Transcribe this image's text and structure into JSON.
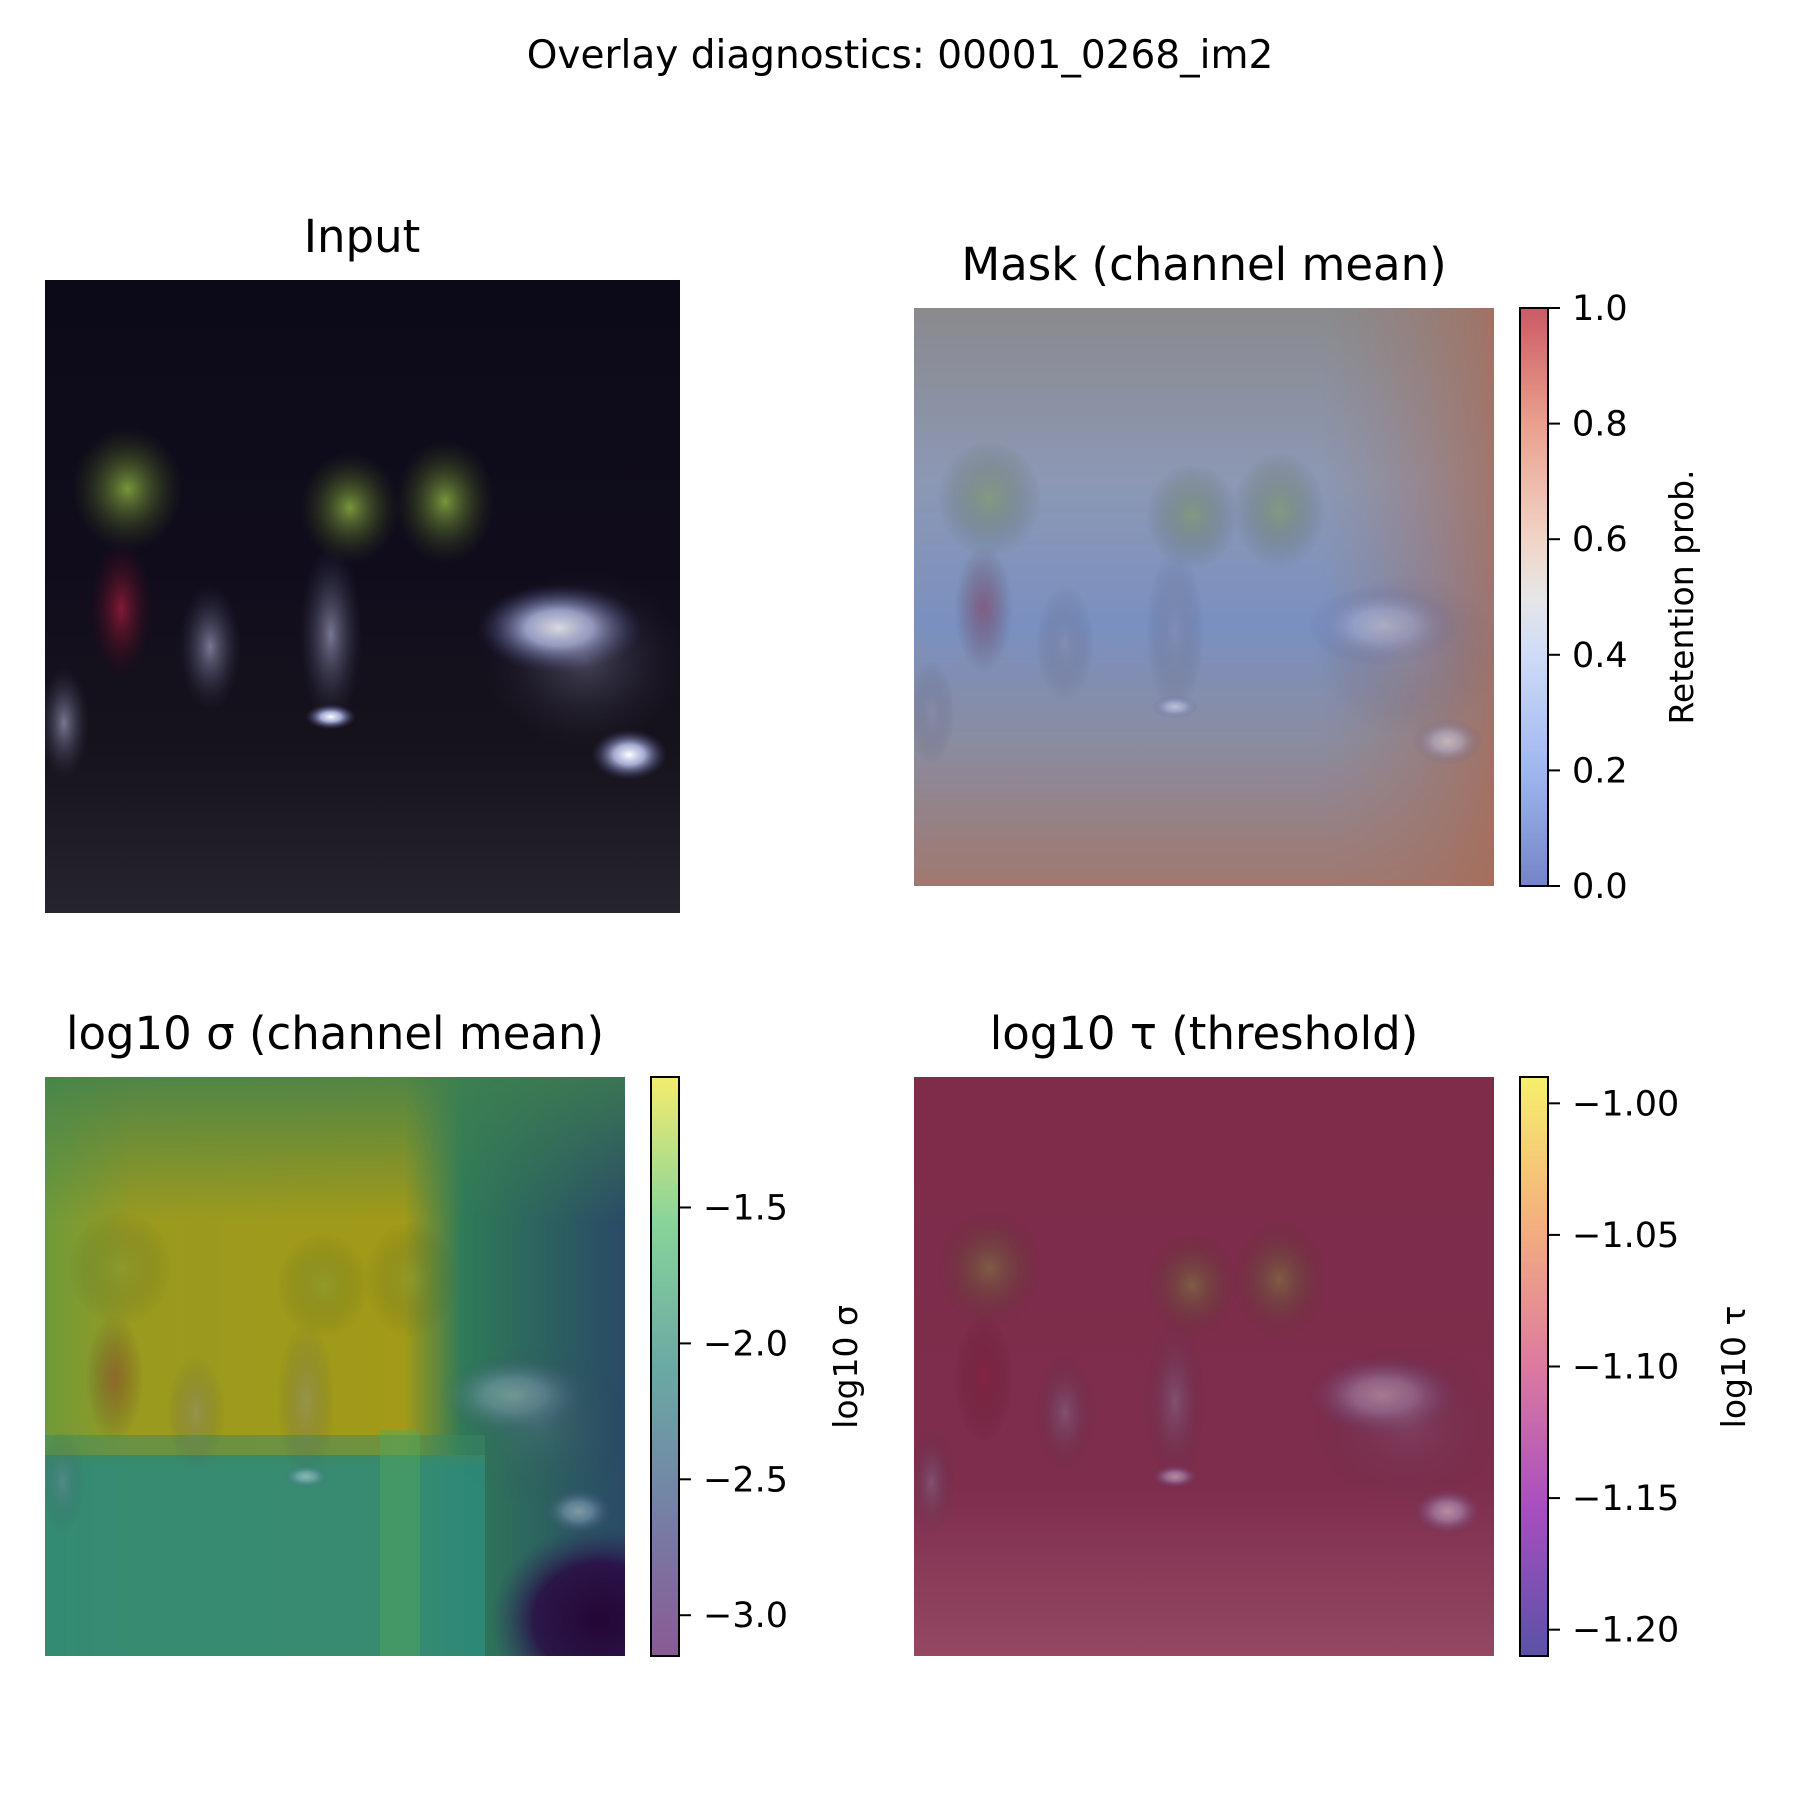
{
  "figure": {
    "suptitle": "Overlay diagnostics: 00001_0268_im2"
  },
  "chart_data": [
    {
      "type": "heatmap",
      "title": "Input",
      "description_color": "dark night scene with people, lit signs and green foliage"
    },
    {
      "type": "heatmap",
      "title": "Mask (channel mean)",
      "colorbar": {
        "label": "Retention prob.",
        "colormap": "coolwarm",
        "range": [
          0.0,
          1.0
        ],
        "ticks": [
          "0.0",
          "0.2",
          "0.4",
          "0.6",
          "0.8",
          "1.0"
        ],
        "tick_values": [
          0.0,
          0.2,
          0.4,
          0.6,
          0.8,
          1.0
        ]
      }
    },
    {
      "type": "heatmap",
      "title": "log10 σ (channel mean)",
      "colorbar": {
        "label": "log10 σ",
        "colormap": "viridis",
        "range": [
          -3.15,
          -1.02
        ],
        "ticks": [
          "−1.5",
          "−2.0",
          "−2.5",
          "−3.0"
        ],
        "tick_values": [
          -1.5,
          -2.0,
          -2.5,
          -3.0
        ]
      }
    },
    {
      "type": "heatmap",
      "title": "log10 τ (threshold)",
      "colorbar": {
        "label": "log10 τ",
        "colormap": "plasma",
        "range": [
          -1.21,
          -0.99
        ],
        "ticks": [
          "−1.00",
          "−1.05",
          "−1.10",
          "−1.15",
          "−1.20"
        ],
        "tick_values": [
          -1.0,
          -1.05,
          -1.1,
          -1.15,
          -1.2
        ]
      }
    }
  ],
  "colors": {
    "coolwarm": [
      "#3b4cc0",
      "#7396f5",
      "#b0cbfc",
      "#dddddd",
      "#f5c4ad",
      "#e7745b",
      "#b40426"
    ],
    "viridis": [
      "#440154",
      "#3b528b",
      "#21918c",
      "#5ec962",
      "#fde725"
    ],
    "plasma": [
      "#0d0887",
      "#7e03a8",
      "#cc4778",
      "#f89540",
      "#f0f921"
    ]
  }
}
